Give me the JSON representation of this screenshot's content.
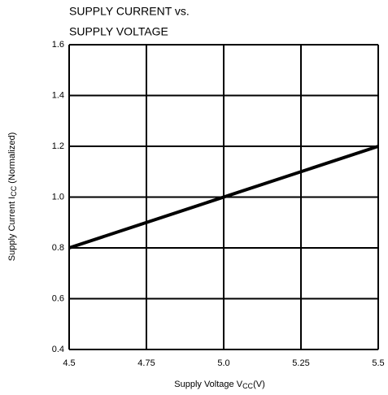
{
  "chart_data": {
    "type": "line",
    "title": [
      "SUPPLY CURRENT vs.",
      "SUPPLY VOLTAGE"
    ],
    "xlabel": {
      "text": "Supply Voltage  V",
      "sub": "CC",
      "suffix": "(V)"
    },
    "ylabel": {
      "text": "Supply Current I",
      "sub": "CC",
      "suffix": " (Normalized)"
    },
    "x": [
      4.5,
      5.5
    ],
    "values": [
      0.8,
      1.2
    ],
    "color": "#000000",
    "xlim": [
      4.5,
      5.5
    ],
    "xticks": [
      4.5,
      4.75,
      {
        "value": 5,
        "label": "5.0"
      },
      5.25,
      5.5
    ],
    "ylim": [
      0.4,
      1.6
    ],
    "yticks": [
      0.4,
      0.6,
      0.8,
      {
        "value": 1,
        "label": "1.0"
      },
      1.2,
      1.4,
      1.6
    ],
    "grid": true
  }
}
